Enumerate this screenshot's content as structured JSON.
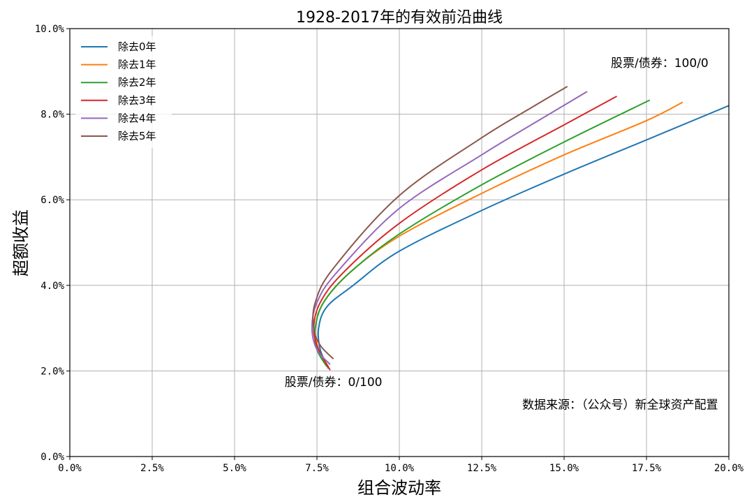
{
  "chart_data": {
    "type": "line",
    "title": "1928-2017年的有效前沿曲线",
    "xlabel": "组合波动率",
    "ylabel": "超额收益",
    "xlim": [
      0,
      20
    ],
    "ylim": [
      0,
      10
    ],
    "x_ticks": [
      0,
      2.5,
      5,
      7.5,
      10,
      12.5,
      15,
      17.5,
      20
    ],
    "x_tick_labels": [
      "0.0%",
      "2.5%",
      "5.0%",
      "7.5%",
      "10.0%",
      "12.5%",
      "15.0%",
      "17.5%",
      "20.0%"
    ],
    "y_ticks": [
      0,
      2,
      4,
      6,
      8,
      10
    ],
    "y_tick_labels": [
      "0.0%",
      "2.0%",
      "4.0%",
      "6.0%",
      "8.0%",
      "10.0%"
    ],
    "grid": true,
    "legend_position": "top-left",
    "series": [
      {
        "name": "除去0年",
        "color": "#1f77b4",
        "points": [
          [
            7.85,
            2.05
          ],
          [
            7.6,
            2.5
          ],
          [
            7.55,
            3.0
          ],
          [
            7.8,
            3.5
          ],
          [
            8.6,
            4.0
          ],
          [
            10.0,
            4.8
          ],
          [
            12.5,
            5.75
          ],
          [
            15.0,
            6.6
          ],
          [
            17.5,
            7.4
          ],
          [
            20.0,
            8.2
          ]
        ]
      },
      {
        "name": "除去1年",
        "color": "#ff7f0e",
        "points": [
          [
            7.85,
            2.1
          ],
          [
            7.55,
            2.5
          ],
          [
            7.45,
            3.0
          ],
          [
            7.7,
            3.6
          ],
          [
            8.5,
            4.3
          ],
          [
            10.0,
            5.15
          ],
          [
            12.5,
            6.15
          ],
          [
            15.0,
            7.05
          ],
          [
            17.5,
            7.85
          ],
          [
            18.6,
            8.28
          ]
        ]
      },
      {
        "name": "除去2年",
        "color": "#2ca02c",
        "points": [
          [
            7.8,
            2.1
          ],
          [
            7.5,
            2.5
          ],
          [
            7.45,
            3.0
          ],
          [
            7.7,
            3.6
          ],
          [
            8.5,
            4.3
          ],
          [
            10.0,
            5.2
          ],
          [
            12.5,
            6.35
          ],
          [
            15.0,
            7.35
          ],
          [
            17.6,
            8.33
          ]
        ]
      },
      {
        "name": "除去3年",
        "color": "#d62728",
        "points": [
          [
            7.9,
            2.02
          ],
          [
            7.55,
            2.5
          ],
          [
            7.4,
            3.0
          ],
          [
            7.6,
            3.6
          ],
          [
            8.3,
            4.3
          ],
          [
            10.0,
            5.45
          ],
          [
            12.5,
            6.7
          ],
          [
            15.0,
            7.75
          ],
          [
            16.6,
            8.42
          ]
        ]
      },
      {
        "name": "除去4年",
        "color": "#9467bd",
        "points": [
          [
            7.9,
            2.15
          ],
          [
            7.5,
            2.5
          ],
          [
            7.35,
            3.0
          ],
          [
            7.5,
            3.6
          ],
          [
            8.1,
            4.3
          ],
          [
            10.0,
            5.8
          ],
          [
            12.5,
            7.05
          ],
          [
            14.0,
            7.75
          ],
          [
            15.7,
            8.53
          ]
        ]
      },
      {
        "name": "除去5年",
        "color": "#8c564b",
        "points": [
          [
            8.0,
            2.28
          ],
          [
            7.6,
            2.6
          ],
          [
            7.4,
            3.0
          ],
          [
            7.45,
            3.6
          ],
          [
            8.0,
            4.4
          ],
          [
            10.0,
            6.1
          ],
          [
            12.5,
            7.45
          ],
          [
            14.0,
            8.15
          ],
          [
            15.1,
            8.65
          ]
        ]
      }
    ],
    "annotations": [
      {
        "text": "股票/债券：100/0",
        "x": 17.9,
        "y": 9.1
      },
      {
        "text": "股票/债券：0/100",
        "x": 8.0,
        "y": 1.65
      },
      {
        "text": "数据来源：（公众号）新全球资产配置",
        "x": 16.7,
        "y": 1.12
      }
    ]
  }
}
